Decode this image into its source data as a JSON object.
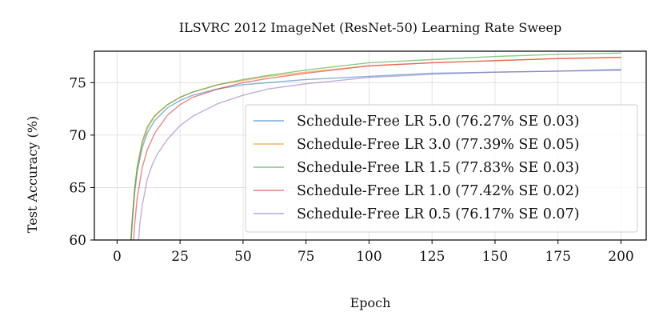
{
  "chart_data": {
    "type": "line",
    "title": "ILSVRC 2012 ImageNet (ResNet-50) Learning Rate Sweep",
    "xlabel": "Epoch",
    "ylabel": "Test Accuracy (%)",
    "xlim": [
      -9,
      210
    ],
    "ylim": [
      60,
      78
    ],
    "xticks": [
      0,
      25,
      50,
      75,
      100,
      125,
      150,
      175,
      200
    ],
    "yticks": [
      60,
      65,
      70,
      75
    ],
    "grid": true,
    "legend_position": "lower-right",
    "series": [
      {
        "name": "Schedule-Free LR 5.0 (76.27% SE 0.03)",
        "color": "#1f77b4",
        "x": [
          5,
          6,
          7,
          8,
          10,
          12,
          15,
          20,
          25,
          30,
          40,
          50,
          60,
          75,
          100,
          125,
          150,
          175,
          200
        ],
        "y": [
          58,
          61.5,
          64.5,
          66.5,
          68.8,
          70.2,
          71.4,
          72.6,
          73.3,
          73.8,
          74.4,
          74.8,
          75.0,
          75.3,
          75.6,
          75.9,
          76.0,
          76.1,
          76.27
        ]
      },
      {
        "name": "Schedule-Free LR 3.0 (77.39% SE 0.05)",
        "color": "#ff7f0e",
        "x": [
          5,
          6,
          7,
          8,
          10,
          12,
          15,
          20,
          25,
          30,
          40,
          50,
          60,
          75,
          100,
          125,
          150,
          175,
          200
        ],
        "y": [
          58,
          61.8,
          64.8,
          66.8,
          69.2,
          70.6,
          71.8,
          72.9,
          73.6,
          74.1,
          74.8,
          75.2,
          75.6,
          76.0,
          76.6,
          76.9,
          77.1,
          77.3,
          77.39
        ]
      },
      {
        "name": "Schedule-Free LR 1.5 (77.83% SE 0.03)",
        "color": "#2ca02c",
        "x": [
          5,
          6,
          7,
          8,
          10,
          12,
          15,
          20,
          25,
          30,
          40,
          50,
          60,
          75,
          100,
          125,
          150,
          175,
          200
        ],
        "y": [
          58,
          62,
          65,
          67,
          69.4,
          70.8,
          71.9,
          72.9,
          73.6,
          74.1,
          74.8,
          75.3,
          75.7,
          76.2,
          76.9,
          77.2,
          77.5,
          77.7,
          77.83
        ]
      },
      {
        "name": "Schedule-Free LR 1.0 (77.42% SE 0.02)",
        "color": "#d62728",
        "x": [
          6,
          7,
          8,
          10,
          12,
          15,
          20,
          25,
          30,
          40,
          50,
          60,
          75,
          100,
          125,
          150,
          175,
          200
        ],
        "y": [
          58,
          61.5,
          64,
          66.9,
          68.6,
          70.2,
          71.9,
          72.9,
          73.6,
          74.4,
          75.0,
          75.4,
          75.9,
          76.6,
          76.9,
          77.1,
          77.3,
          77.42
        ]
      },
      {
        "name": "Schedule-Free LR 0.5 (76.17% SE 0.07)",
        "color": "#9467bd",
        "x": [
          8,
          9,
          10,
          12,
          14,
          16,
          20,
          25,
          30,
          40,
          50,
          60,
          75,
          100,
          125,
          150,
          175,
          200
        ],
        "y": [
          58,
          61.5,
          63.3,
          65.8,
          67.2,
          68.2,
          69.6,
          70.9,
          71.8,
          73.0,
          73.8,
          74.4,
          74.9,
          75.5,
          75.8,
          76.0,
          76.1,
          76.17
        ]
      }
    ]
  }
}
